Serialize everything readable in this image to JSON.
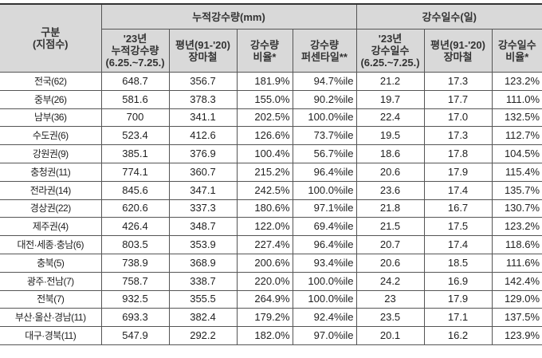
{
  "header": {
    "category": "구분",
    "category_sub": "(지점수)",
    "group_rain": "누적강수량(mm)",
    "group_days": "강수일수(일)",
    "columns": [
      [
        "'23년",
        "누적강수량",
        "(6.25.~7.25.)"
      ],
      [
        "평년(91-'20)",
        "장마철"
      ],
      [
        "강수량",
        "비율*"
      ],
      [
        "강수량",
        "퍼센타일**"
      ],
      [
        "'23년",
        "강수일수",
        "(6.25.~7.25.)"
      ],
      [
        "평년(91-'20)",
        "장마철"
      ],
      [
        "강수일수",
        "비율*"
      ]
    ]
  },
  "rows": [
    [
      "전국(62)",
      "648.7",
      "356.7",
      "181.9%",
      "94.7%ile",
      "21.2",
      "17.3",
      "123.2%"
    ],
    [
      "중부(26)",
      "581.6",
      "378.3",
      "155.0%",
      "90.2%ile",
      "19.7",
      "17.7",
      "111.0%"
    ],
    [
      "남부(36)",
      "700",
      "341.1",
      "202.5%",
      "100.0%ile",
      "22.4",
      "17.0",
      "132.5%"
    ],
    [
      "수도권(6)",
      "523.4",
      "412.6",
      "126.6%",
      "73.7%ile",
      "19.5",
      "17.3",
      "112.7%"
    ],
    [
      "강원권(9)",
      "385.1",
      "376.9",
      "100.4%",
      "56.7%ile",
      "18.6",
      "17.8",
      "104.5%"
    ],
    [
      "충청권(11)",
      "774.1",
      "360.7",
      "215.2%",
      "96.4%ile",
      "20.6",
      "17.9",
      "115.4%"
    ],
    [
      "전라권(14)",
      "845.6",
      "347.1",
      "242.5%",
      "100.0%ile",
      "23.6",
      "17.4",
      "135.7%"
    ],
    [
      "경상권(22)",
      "620.6",
      "337.3",
      "180.6%",
      "97.1%ile",
      "21.8",
      "16.7",
      "130.7%"
    ],
    [
      "제주권(4)",
      "426.4",
      "348.7",
      "122.0%",
      "69.4%ile",
      "21.5",
      "17.5",
      "123.2%"
    ],
    [
      "대전·세종·충남(6)",
      "803.5",
      "353.9",
      "227.4%",
      "96.4%ile",
      "20.7",
      "17.4",
      "118.6%"
    ],
    [
      "충북(5)",
      "738.9",
      "368.9",
      "200.6%",
      "93.4%ile",
      "20.6",
      "18.5",
      "111.6%"
    ],
    [
      "광주·전남(7)",
      "758.7",
      "338.7",
      "220.0%",
      "100.0%ile",
      "24.2",
      "16.9",
      "142.4%"
    ],
    [
      "전북(7)",
      "932.5",
      "355.5",
      "264.9%",
      "100.0%ile",
      "23",
      "17.9",
      "129.0%"
    ],
    [
      "부산·울산·경남(11)",
      "693.3",
      "382.4",
      "179.2%",
      "92.4%ile",
      "23.5",
      "17.1",
      "137.5%"
    ],
    [
      "대구·경북(11)",
      "547.9",
      "292.2",
      "182.0%",
      "97.0%ile",
      "20.1",
      "16.2",
      "123.9%"
    ]
  ]
}
